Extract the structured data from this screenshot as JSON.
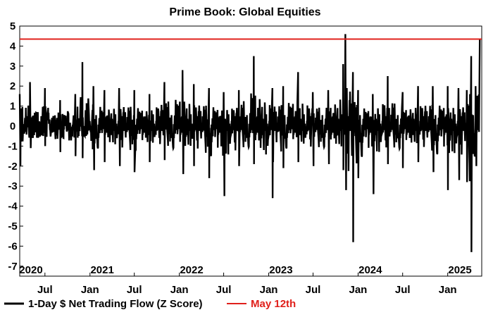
{
  "chart_data": {
    "type": "line",
    "title": "Prime Book: Global Equities",
    "xlabel": "",
    "ylabel": "",
    "ylim": [
      -7.5,
      5
    ],
    "yticks": [
      5,
      4,
      3,
      2,
      1,
      0,
      -1,
      -2,
      -3,
      -4,
      -5,
      -6,
      -7
    ],
    "xlim": [
      "2020-03-20",
      "2025-05-20"
    ],
    "x_tick_labels": [
      {
        "date": "2020-07-01",
        "label": "Jul"
      },
      {
        "date": "2021-01-01",
        "label": "Jan"
      },
      {
        "date": "2021-07-01",
        "label": "Jul"
      },
      {
        "date": "2022-01-01",
        "label": "Jan"
      },
      {
        "date": "2022-07-01",
        "label": "Jul"
      },
      {
        "date": "2023-01-01",
        "label": "Jan"
      },
      {
        "date": "2023-07-01",
        "label": "Jul"
      },
      {
        "date": "2024-01-01",
        "label": "Jan"
      },
      {
        "date": "2024-07-01",
        "label": "Jul"
      },
      {
        "date": "2025-01-01",
        "label": "Jan"
      }
    ],
    "year_labels": [
      {
        "date": "2020-05-05",
        "label": "2020"
      },
      {
        "date": "2021-02-20",
        "label": "2021"
      },
      {
        "date": "2022-02-20",
        "label": "2022"
      },
      {
        "date": "2023-02-20",
        "label": "2023"
      },
      {
        "date": "2024-02-20",
        "label": "2024"
      },
      {
        "date": "2025-02-20",
        "label": "2025"
      }
    ],
    "reference_line": {
      "name": "May 12th",
      "value": 4.35,
      "color": "#e0201b"
    },
    "series": [
      {
        "name": "1-Day $ Net Trading Flow (Z Score)",
        "color": "#000000",
        "x": [
          "2020-03-20",
          "2020-05-01",
          "2020-07-01",
          "2020-09-01",
          "2020-11-01",
          "2020-12-01",
          "2021-01-15",
          "2021-03-01",
          "2021-05-01",
          "2021-07-01",
          "2021-09-01",
          "2021-11-01",
          "2022-01-15",
          "2022-03-01",
          "2022-05-01",
          "2022-07-01",
          "2022-09-01",
          "2022-11-01",
          "2023-01-15",
          "2023-03-01",
          "2023-05-01",
          "2023-07-01",
          "2023-09-01",
          "2023-11-01",
          "2023-11-10",
          "2023-12-10",
          "2024-01-01",
          "2024-03-01",
          "2024-05-01",
          "2024-07-01",
          "2024-09-01",
          "2024-11-01",
          "2025-01-01",
          "2025-02-15",
          "2025-03-20",
          "2025-04-07",
          "2025-04-25",
          "2025-05-12"
        ],
        "low": [
          -2.0,
          -1.1,
          -1.0,
          -1.3,
          -1.5,
          -1.6,
          -2.2,
          -1.8,
          -2.0,
          -2.3,
          -1.8,
          -1.7,
          -2.4,
          -2.0,
          -2.6,
          -3.5,
          -2.0,
          -1.9,
          -3.6,
          -2.1,
          -1.8,
          -2.0,
          -1.9,
          -2.2,
          -3.2,
          -5.8,
          -2.6,
          -3.4,
          -1.9,
          -2.1,
          -1.8,
          -2.3,
          -3.2,
          -2.7,
          -2.8,
          -6.3,
          -2.0,
          -1.5
        ],
        "high": [
          1.6,
          2.2,
          1.9,
          1.3,
          1.6,
          3.2,
          2.0,
          1.8,
          1.9,
          1.8,
          1.6,
          2.2,
          2.8,
          2.1,
          1.9,
          1.7,
          1.8,
          3.5,
          1.9,
          2.0,
          2.7,
          1.7,
          1.8,
          3.1,
          4.6,
          2.7,
          1.8,
          1.6,
          2.5,
          1.7,
          2.0,
          2.0,
          2.0,
          1.9,
          1.8,
          3.5,
          2.0,
          4.35
        ]
      }
    ],
    "legend": [
      {
        "label": "1-Day $ Net Trading Flow (Z Score)",
        "color": "#000000"
      },
      {
        "label": "May 12th",
        "color": "#e0201b"
      }
    ],
    "legend_position": "bottom-left",
    "grid": false
  }
}
